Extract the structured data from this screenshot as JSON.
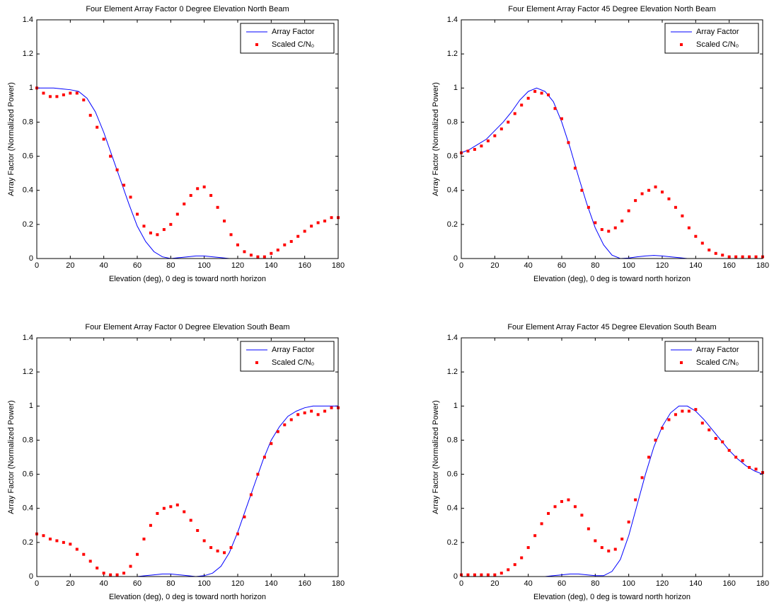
{
  "chart_data": [
    {
      "type": "line",
      "title": "Four Element Array Factor 0 Degree Elevation North Beam",
      "xlabel": "Elevation (deg), 0 deg is toward north horizon",
      "ylabel": "Array Factor (Normalized Power)",
      "xlim": [
        0,
        180
      ],
      "ylim": [
        0,
        1.4
      ],
      "xticks": [
        0,
        20,
        40,
        60,
        80,
        100,
        120,
        140,
        160,
        180
      ],
      "yticks": [
        0,
        0.2,
        0.4,
        0.6,
        0.8,
        1,
        1.2,
        1.4
      ],
      "legend": "upper right",
      "series": [
        {
          "name": "Array Factor",
          "type": "line",
          "color": "#0000ff",
          "x": [
            0,
            5,
            10,
            15,
            20,
            25,
            30,
            35,
            40,
            45,
            50,
            55,
            60,
            65,
            70,
            75,
            80,
            85,
            90,
            95,
            100,
            105,
            110,
            115,
            120,
            125,
            130,
            135,
            140,
            145,
            150,
            155,
            160,
            165,
            170,
            175,
            180
          ],
          "values": [
            1,
            1,
            1,
            0.995,
            0.99,
            0.98,
            0.94,
            0.86,
            0.74,
            0.6,
            0.46,
            0.32,
            0.19,
            0.1,
            0.04,
            0.01,
            0,
            0.005,
            0.01,
            0.015,
            0.015,
            0.01,
            0.005,
            0,
            0,
            0,
            0,
            0,
            0,
            0,
            0,
            0,
            0,
            0,
            0,
            0,
            0
          ]
        },
        {
          "name": "Scaled C/N₀",
          "type": "scatter",
          "color": "#ff0000",
          "x": [
            0,
            4,
            8,
            12,
            16,
            20,
            24,
            28,
            32,
            36,
            40,
            44,
            48,
            52,
            56,
            60,
            64,
            68,
            72,
            76,
            80,
            84,
            88,
            92,
            96,
            100,
            104,
            108,
            112,
            116,
            120,
            124,
            128,
            132,
            136,
            140,
            144,
            148,
            152,
            156,
            160,
            164,
            168,
            172,
            176,
            180
          ],
          "values": [
            1,
            0.97,
            0.95,
            0.95,
            0.96,
            0.97,
            0.97,
            0.93,
            0.84,
            0.77,
            0.7,
            0.6,
            0.52,
            0.43,
            0.36,
            0.26,
            0.19,
            0.15,
            0.14,
            0.17,
            0.2,
            0.26,
            0.32,
            0.37,
            0.41,
            0.42,
            0.37,
            0.3,
            0.22,
            0.14,
            0.08,
            0.04,
            0.02,
            0.01,
            0.01,
            0.03,
            0.05,
            0.08,
            0.1,
            0.13,
            0.16,
            0.19,
            0.21,
            0.22,
            0.24,
            0.24
          ]
        }
      ]
    },
    {
      "type": "line",
      "title": "Four Element Array Factor 45 Degree Elevation North Beam",
      "xlabel": "Elevation (deg), 0 deg is toward north horizon",
      "ylabel": "Array Factor (Normalized Power)",
      "xlim": [
        0,
        180
      ],
      "ylim": [
        0,
        1.4
      ],
      "xticks": [
        0,
        20,
        40,
        60,
        80,
        100,
        120,
        140,
        160,
        180
      ],
      "yticks": [
        0,
        0.2,
        0.4,
        0.6,
        0.8,
        1,
        1.2,
        1.4
      ],
      "legend": "upper right",
      "series": [
        {
          "name": "Array Factor",
          "type": "line",
          "color": "#0000ff",
          "x": [
            0,
            5,
            10,
            15,
            20,
            25,
            30,
            35,
            40,
            45,
            50,
            55,
            60,
            65,
            70,
            75,
            80,
            85,
            90,
            95,
            100,
            105,
            110,
            115,
            120,
            125,
            130,
            135,
            140,
            145,
            150,
            155,
            160,
            165,
            170,
            175,
            180
          ],
          "values": [
            0.62,
            0.64,
            0.67,
            0.7,
            0.75,
            0.8,
            0.86,
            0.93,
            0.98,
            1,
            0.98,
            0.92,
            0.8,
            0.65,
            0.48,
            0.32,
            0.18,
            0.08,
            0.02,
            0,
            0.003,
            0.01,
            0.015,
            0.018,
            0.015,
            0.01,
            0.005,
            0,
            0,
            0,
            0,
            0,
            0,
            0,
            0,
            0,
            0
          ]
        },
        {
          "name": "Scaled C/N₀",
          "type": "scatter",
          "color": "#ff0000",
          "x": [
            0,
            4,
            8,
            12,
            16,
            20,
            24,
            28,
            32,
            36,
            40,
            44,
            48,
            52,
            56,
            60,
            64,
            68,
            72,
            76,
            80,
            84,
            88,
            92,
            96,
            100,
            104,
            108,
            112,
            116,
            120,
            124,
            128,
            132,
            136,
            140,
            144,
            148,
            152,
            156,
            160,
            164,
            168,
            172,
            176,
            180
          ],
          "values": [
            0.62,
            0.63,
            0.64,
            0.66,
            0.69,
            0.72,
            0.76,
            0.8,
            0.85,
            0.9,
            0.94,
            0.98,
            0.97,
            0.96,
            0.88,
            0.82,
            0.68,
            0.53,
            0.4,
            0.3,
            0.21,
            0.17,
            0.16,
            0.18,
            0.22,
            0.28,
            0.34,
            0.38,
            0.4,
            0.42,
            0.39,
            0.35,
            0.3,
            0.25,
            0.18,
            0.13,
            0.09,
            0.05,
            0.03,
            0.02,
            0.01,
            0.01,
            0.01,
            0.01,
            0.01,
            0.01
          ]
        }
      ]
    },
    {
      "type": "line",
      "title": "Four Element Array Factor 0 Degree Elevation South Beam",
      "xlabel": "Elevation (deg), 0 deg is toward north horizon",
      "ylabel": "Array Factor (Normalized Power)",
      "xlim": [
        0,
        180
      ],
      "ylim": [
        0,
        1.4
      ],
      "xticks": [
        0,
        20,
        40,
        60,
        80,
        100,
        120,
        140,
        160,
        180
      ],
      "yticks": [
        0,
        0.2,
        0.4,
        0.6,
        0.8,
        1,
        1.2,
        1.4
      ],
      "legend": "upper right",
      "series": [
        {
          "name": "Array Factor",
          "type": "line",
          "color": "#0000ff",
          "x": [
            0,
            5,
            10,
            15,
            20,
            25,
            30,
            35,
            40,
            45,
            50,
            55,
            60,
            65,
            70,
            75,
            80,
            85,
            90,
            95,
            100,
            105,
            110,
            115,
            120,
            125,
            130,
            135,
            140,
            145,
            150,
            155,
            160,
            165,
            170,
            175,
            180
          ],
          "values": [
            0,
            0,
            0,
            0,
            0,
            0,
            0,
            0,
            0,
            0,
            0,
            0,
            0,
            0.005,
            0.01,
            0.015,
            0.015,
            0.01,
            0.005,
            0,
            0.005,
            0.02,
            0.06,
            0.14,
            0.26,
            0.4,
            0.54,
            0.68,
            0.8,
            0.88,
            0.94,
            0.97,
            0.99,
            1,
            1,
            1,
            1
          ]
        },
        {
          "name": "Scaled C/N₀",
          "type": "scatter",
          "color": "#ff0000",
          "x": [
            0,
            4,
            8,
            12,
            16,
            20,
            24,
            28,
            32,
            36,
            40,
            44,
            48,
            52,
            56,
            60,
            64,
            68,
            72,
            76,
            80,
            84,
            88,
            92,
            96,
            100,
            104,
            108,
            112,
            116,
            120,
            124,
            128,
            132,
            136,
            140,
            144,
            148,
            152,
            156,
            160,
            164,
            168,
            172,
            176,
            180
          ],
          "values": [
            0.25,
            0.24,
            0.22,
            0.21,
            0.2,
            0.19,
            0.16,
            0.13,
            0.09,
            0.05,
            0.02,
            0.01,
            0.01,
            0.02,
            0.06,
            0.13,
            0.22,
            0.3,
            0.37,
            0.4,
            0.41,
            0.42,
            0.38,
            0.33,
            0.27,
            0.21,
            0.17,
            0.15,
            0.14,
            0.17,
            0.25,
            0.35,
            0.48,
            0.6,
            0.7,
            0.78,
            0.85,
            0.89,
            0.92,
            0.95,
            0.96,
            0.97,
            0.95,
            0.97,
            0.99,
            0.99
          ]
        }
      ]
    },
    {
      "type": "line",
      "title": "Four Element Array Factor 45 Degree Elevation South Beam",
      "xlabel": "Elevation (deg), 0 deg is toward north horizon",
      "ylabel": "Array Factor (Normalized Power)",
      "xlim": [
        0,
        180
      ],
      "ylim": [
        0,
        1.4
      ],
      "xticks": [
        0,
        20,
        40,
        60,
        80,
        100,
        120,
        140,
        160,
        180
      ],
      "yticks": [
        0,
        0.2,
        0.4,
        0.6,
        0.8,
        1,
        1.2,
        1.4
      ],
      "legend": "upper right",
      "series": [
        {
          "name": "Array Factor",
          "type": "line",
          "color": "#0000ff",
          "x": [
            0,
            5,
            10,
            15,
            20,
            25,
            30,
            35,
            40,
            45,
            50,
            55,
            60,
            65,
            70,
            75,
            80,
            85,
            90,
            95,
            100,
            105,
            110,
            115,
            120,
            125,
            130,
            135,
            140,
            145,
            150,
            155,
            160,
            165,
            170,
            175,
            180
          ],
          "values": [
            0,
            0,
            0,
            0,
            0,
            0,
            0,
            0,
            0,
            0,
            0,
            0.005,
            0.01,
            0.015,
            0.015,
            0.01,
            0.005,
            0.005,
            0.03,
            0.1,
            0.24,
            0.42,
            0.6,
            0.76,
            0.88,
            0.96,
            1,
            1,
            0.97,
            0.92,
            0.86,
            0.8,
            0.74,
            0.69,
            0.65,
            0.62,
            0.6
          ]
        },
        {
          "name": "Scaled C/N₀",
          "type": "scatter",
          "color": "#ff0000",
          "x": [
            0,
            4,
            8,
            12,
            16,
            20,
            24,
            28,
            32,
            36,
            40,
            44,
            48,
            52,
            56,
            60,
            64,
            68,
            72,
            76,
            80,
            84,
            88,
            92,
            96,
            100,
            104,
            108,
            112,
            116,
            120,
            124,
            128,
            132,
            136,
            140,
            144,
            148,
            152,
            156,
            160,
            164,
            168,
            172,
            176,
            180
          ],
          "values": [
            0.01,
            0.01,
            0.01,
            0.01,
            0.01,
            0.01,
            0.02,
            0.04,
            0.07,
            0.11,
            0.17,
            0.24,
            0.31,
            0.37,
            0.41,
            0.44,
            0.45,
            0.41,
            0.36,
            0.28,
            0.21,
            0.17,
            0.15,
            0.16,
            0.22,
            0.32,
            0.45,
            0.58,
            0.7,
            0.8,
            0.87,
            0.92,
            0.95,
            0.97,
            0.97,
            0.98,
            0.9,
            0.86,
            0.81,
            0.79,
            0.74,
            0.7,
            0.68,
            0.64,
            0.63,
            0.61
          ]
        }
      ]
    }
  ]
}
